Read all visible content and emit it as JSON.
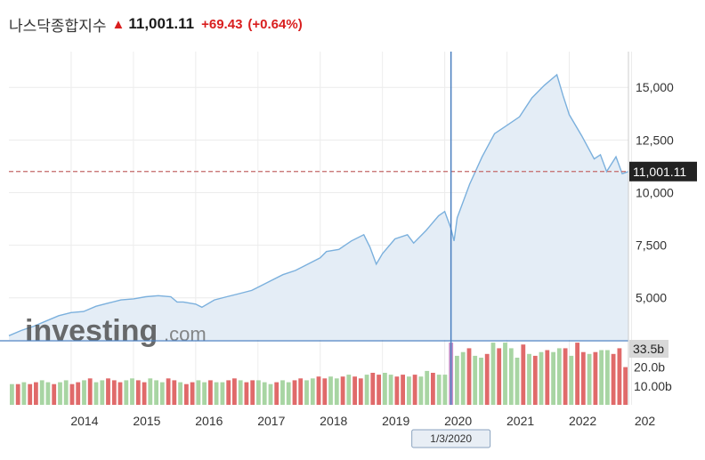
{
  "header": {
    "name": "나스닥종합지수",
    "arrow": "▲",
    "price": "11,001.11",
    "change": "+69.43",
    "change_pct": "(+0.64%)"
  },
  "brand": {
    "main": "investing",
    "suffix": ".com"
  },
  "colors": {
    "line": "#7bb0dd",
    "area": "#e4edf6",
    "crosshair": "#4a7fc0",
    "up_volume": "#a8d5a3",
    "down_volume": "#e06a6a",
    "highlight_volume": "#c890c8",
    "price_line": "#c46a6a",
    "price_label_bg": "#222222",
    "volume_label_bg": "#d8d8d8"
  },
  "cursor": {
    "date_label": "1/3/2020",
    "x": 2020.0
  },
  "current_price_label": "11,001.11",
  "volume_max_label": "33.5b",
  "chart_data": [
    {
      "type": "area",
      "title": "나스닥종합지수",
      "xlabel": "",
      "ylabel": "",
      "x_ticks": [
        "2014",
        "2015",
        "2016",
        "2017",
        "2018",
        "2019",
        "2020",
        "2021",
        "2022",
        "202"
      ],
      "y_ticks": [
        "5,000",
        "7,500",
        "10,000",
        "12,500",
        "15,000"
      ],
      "xlim": [
        2013.0,
        2022.95
      ],
      "ylim": [
        3000,
        16700
      ],
      "grid": true,
      "legend": "none",
      "current_value": 11001.11,
      "series": [
        {
          "x": [
            2013.0,
            2013.2,
            2013.4,
            2013.6,
            2013.8,
            2014.0,
            2014.2,
            2014.4,
            2014.6,
            2014.8,
            2015.0,
            2015.2,
            2015.4,
            2015.6,
            2015.7,
            2015.8,
            2016.0,
            2016.1,
            2016.3,
            2016.5,
            2016.7,
            2016.9,
            2017.0,
            2017.2,
            2017.4,
            2017.6,
            2017.8,
            2018.0,
            2018.1,
            2018.3,
            2018.5,
            2018.7,
            2018.8,
            2018.9,
            2019.0,
            2019.2,
            2019.4,
            2019.5,
            2019.7,
            2019.9,
            2020.0,
            2020.1,
            2020.15,
            2020.2,
            2020.4,
            2020.6,
            2020.8,
            2021.0,
            2021.2,
            2021.4,
            2021.6,
            2021.8,
            2021.9,
            2022.0,
            2022.2,
            2022.4,
            2022.5,
            2022.6,
            2022.75,
            2022.85,
            2022.95
          ],
          "values": [
            3200,
            3450,
            3650,
            3900,
            4150,
            4300,
            4350,
            4600,
            4750,
            4900,
            4950,
            5050,
            5100,
            5050,
            4800,
            4800,
            4700,
            4550,
            4900,
            5050,
            5200,
            5350,
            5500,
            5800,
            6100,
            6300,
            6600,
            6900,
            7200,
            7300,
            7700,
            8000,
            7400,
            6600,
            7100,
            7800,
            8000,
            7600,
            8200,
            8900,
            9100,
            8300,
            7700,
            8800,
            10400,
            11700,
            12800,
            13200,
            13600,
            14500,
            15100,
            15600,
            14600,
            13700,
            12700,
            11600,
            11800,
            11000,
            11700,
            10900,
            11001
          ]
        }
      ]
    },
    {
      "type": "bar",
      "title": "",
      "y_ticks": [
        "10.00b",
        "20.0b"
      ],
      "max_label": "33.5b",
      "ylim": [
        0,
        33.5
      ],
      "direction_legend": "up = green, down = red",
      "series": [
        {
          "name": "",
          "values": [
            11,
            11,
            12,
            11,
            12,
            13,
            12,
            11,
            12,
            13,
            11,
            12,
            13,
            14,
            12,
            13,
            14,
            13,
            12,
            13,
            14,
            13,
            12,
            14,
            13,
            12,
            14,
            13,
            12,
            11,
            12,
            13,
            12,
            13,
            12,
            12,
            13,
            14,
            13,
            12,
            13,
            13,
            12,
            11,
            12,
            13,
            12,
            13,
            14,
            13,
            14,
            15,
            14,
            15,
            14,
            15,
            16,
            15,
            14,
            16,
            17,
            16,
            17,
            16,
            15,
            16,
            15,
            16,
            15,
            18,
            17,
            16,
            16,
            33,
            26,
            28,
            30,
            26,
            25,
            27,
            33,
            30,
            33,
            30,
            25,
            32,
            27,
            26,
            28,
            29,
            28,
            30,
            30,
            26,
            33,
            28,
            27,
            28,
            29,
            29,
            27,
            30,
            20
          ],
          "direction": [
            "u",
            "d",
            "u",
            "d",
            "d",
            "u",
            "u",
            "d",
            "u",
            "u",
            "d",
            "d",
            "u",
            "d",
            "u",
            "u",
            "d",
            "d",
            "d",
            "u",
            "u",
            "d",
            "d",
            "u",
            "u",
            "u",
            "d",
            "d",
            "u",
            "d",
            "d",
            "u",
            "u",
            "d",
            "u",
            "u",
            "d",
            "d",
            "u",
            "d",
            "d",
            "u",
            "u",
            "u",
            "d",
            "u",
            "u",
            "d",
            "d",
            "u",
            "u",
            "d",
            "d",
            "u",
            "u",
            "d",
            "u",
            "d",
            "d",
            "u",
            "d",
            "d",
            "u",
            "u",
            "d",
            "d",
            "u",
            "d",
            "u",
            "u",
            "d",
            "u",
            "u",
            "h",
            "u",
            "u",
            "d",
            "u",
            "u",
            "d",
            "u",
            "d",
            "u",
            "u",
            "u",
            "d",
            "u",
            "d",
            "u",
            "d",
            "u",
            "u",
            "d",
            "u",
            "d",
            "d",
            "u",
            "d",
            "u",
            "u",
            "d",
            "d",
            "d"
          ]
        }
      ]
    }
  ]
}
